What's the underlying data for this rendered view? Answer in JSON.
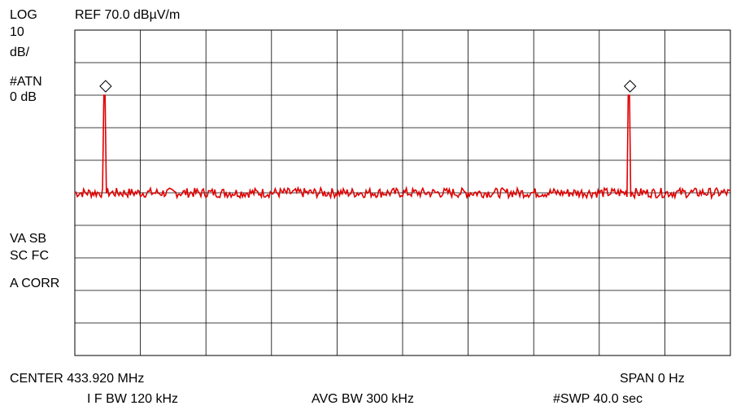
{
  "header": {
    "scale_mode": "LOG",
    "scale_value": "10",
    "scale_unit": "dB/",
    "ref_level": "REF 70.0 dBµV/m",
    "attenuation_label": "#ATN",
    "attenuation_value": "0 dB"
  },
  "side_labels": {
    "line1": "VA SB",
    "line2": "SC FC",
    "line3": "A CORR"
  },
  "footer": {
    "center": "CENTER 433.920 MHz",
    "span": "SPAN 0 Hz",
    "if_bw": "I F BW 120 kHz",
    "avg_bw": "AVG BW 300 kHz",
    "sweep": "#SWP 40.0 sec"
  },
  "colors": {
    "trace": "#e00000",
    "grid": "#000000",
    "background": "#ffffff"
  },
  "chart_data": {
    "type": "line",
    "title": "",
    "xlabel": "",
    "ylabel": "",
    "x_divisions": 10,
    "y_divisions": 10,
    "ylim": [
      -30,
      70
    ],
    "grid": true,
    "series": [
      {
        "baseline_level": 20,
        "noise_amplitude": 1.5,
        "pulses": [
          {
            "position_div": 0.45,
            "level": 50,
            "width_div": 0.05
          },
          {
            "position_div": 8.45,
            "level": 50,
            "width_div": 0.05
          }
        ]
      }
    ],
    "markers": [
      {
        "position_div": 0.47,
        "symbol": "diamond"
      },
      {
        "position_div": 8.47,
        "symbol": "diamond"
      }
    ]
  }
}
